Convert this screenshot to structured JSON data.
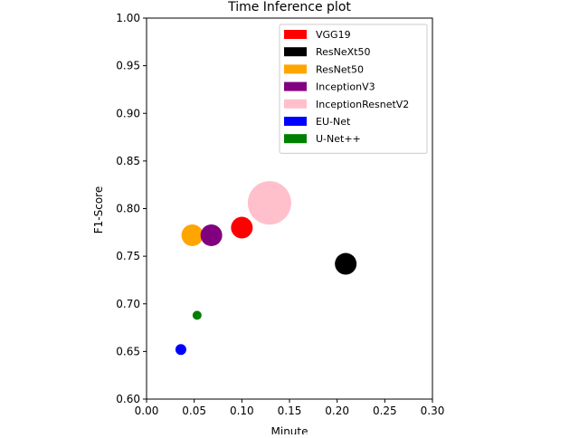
{
  "chart_data": {
    "type": "scatter",
    "title": "Time Inference plot",
    "xlabel": "Minute",
    "ylabel": "F1-Score",
    "xlim": [
      0.0,
      0.3
    ],
    "ylim": [
      0.6,
      1.0
    ],
    "xticks": [
      "0.00",
      "0.05",
      "0.10",
      "0.15",
      "0.20",
      "0.25",
      "0.30"
    ],
    "yticks": [
      "0.60",
      "0.65",
      "0.70",
      "0.75",
      "0.80",
      "0.85",
      "0.90",
      "0.95",
      "1.00"
    ],
    "grid": false,
    "legend_position": "top-right",
    "series": [
      {
        "name": "VGG19",
        "color": "#ff0000",
        "x": 0.1,
        "y": 0.78,
        "size": 1.2
      },
      {
        "name": "ResNeXt50",
        "color": "#000000",
        "x": 0.209,
        "y": 0.742,
        "size": 1.2
      },
      {
        "name": "ResNet50",
        "color": "#ffa500",
        "x": 0.048,
        "y": 0.772,
        "size": 1.2
      },
      {
        "name": "InceptionV3",
        "color": "#800080",
        "x": 0.068,
        "y": 0.772,
        "size": 1.2
      },
      {
        "name": "InceptionResnetV2",
        "color": "#ffc0cb",
        "x": 0.129,
        "y": 0.806,
        "size": 2.4
      },
      {
        "name": "EU-Net",
        "color": "#0000ff",
        "x": 0.036,
        "y": 0.652,
        "size": 0.6
      },
      {
        "name": "U-Net++",
        "color": "#008000",
        "x": 0.053,
        "y": 0.688,
        "size": 0.5
      }
    ]
  }
}
